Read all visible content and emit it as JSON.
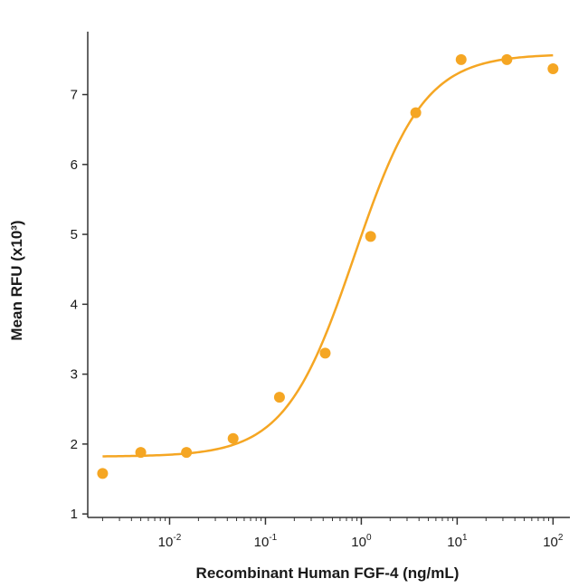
{
  "chart_data": {
    "type": "scatter",
    "xlabel": "Recombinant Human FGF-4 (ng/mL)",
    "ylabel": "Mean RFU (x10³)",
    "x_scale": "log",
    "xlim": [
      0.0014,
      150
    ],
    "ylim": [
      0.95,
      7.9
    ],
    "x_tick_labels": [
      {
        "value": 0.01,
        "base": "10",
        "exp": "-2"
      },
      {
        "value": 0.1,
        "base": "10",
        "exp": "-1"
      },
      {
        "value": 1,
        "base": "10",
        "exp": "0"
      },
      {
        "value": 10,
        "base": "10",
        "exp": "1"
      },
      {
        "value": 100,
        "base": "10",
        "exp": "2"
      }
    ],
    "y_ticks": [
      1,
      2,
      3,
      4,
      5,
      6,
      7
    ],
    "y_tick_labels": [
      "1",
      "2",
      "3",
      "4",
      "5",
      "6",
      "7"
    ],
    "grid": false,
    "colors": {
      "series": "#f5a623",
      "axis": "#333333"
    },
    "series": [
      {
        "points": [
          {
            "x": 0.002,
            "y": 1.58
          },
          {
            "x": 0.005,
            "y": 1.88
          },
          {
            "x": 0.015,
            "y": 1.88
          },
          {
            "x": 0.046,
            "y": 2.08
          },
          {
            "x": 0.14,
            "y": 2.67
          },
          {
            "x": 0.42,
            "y": 3.3
          },
          {
            "x": 1.25,
            "y": 4.97
          },
          {
            "x": 3.7,
            "y": 6.74
          },
          {
            "x": 11,
            "y": 7.5
          },
          {
            "x": 33,
            "y": 7.5
          },
          {
            "x": 100,
            "y": 7.37
          }
        ],
        "fit": {
          "model": "4PL",
          "bottom": 1.82,
          "top": 7.58,
          "ec50": 0.85,
          "hill": 1.2,
          "x_range": [
            0.002,
            100
          ]
        }
      }
    ]
  }
}
